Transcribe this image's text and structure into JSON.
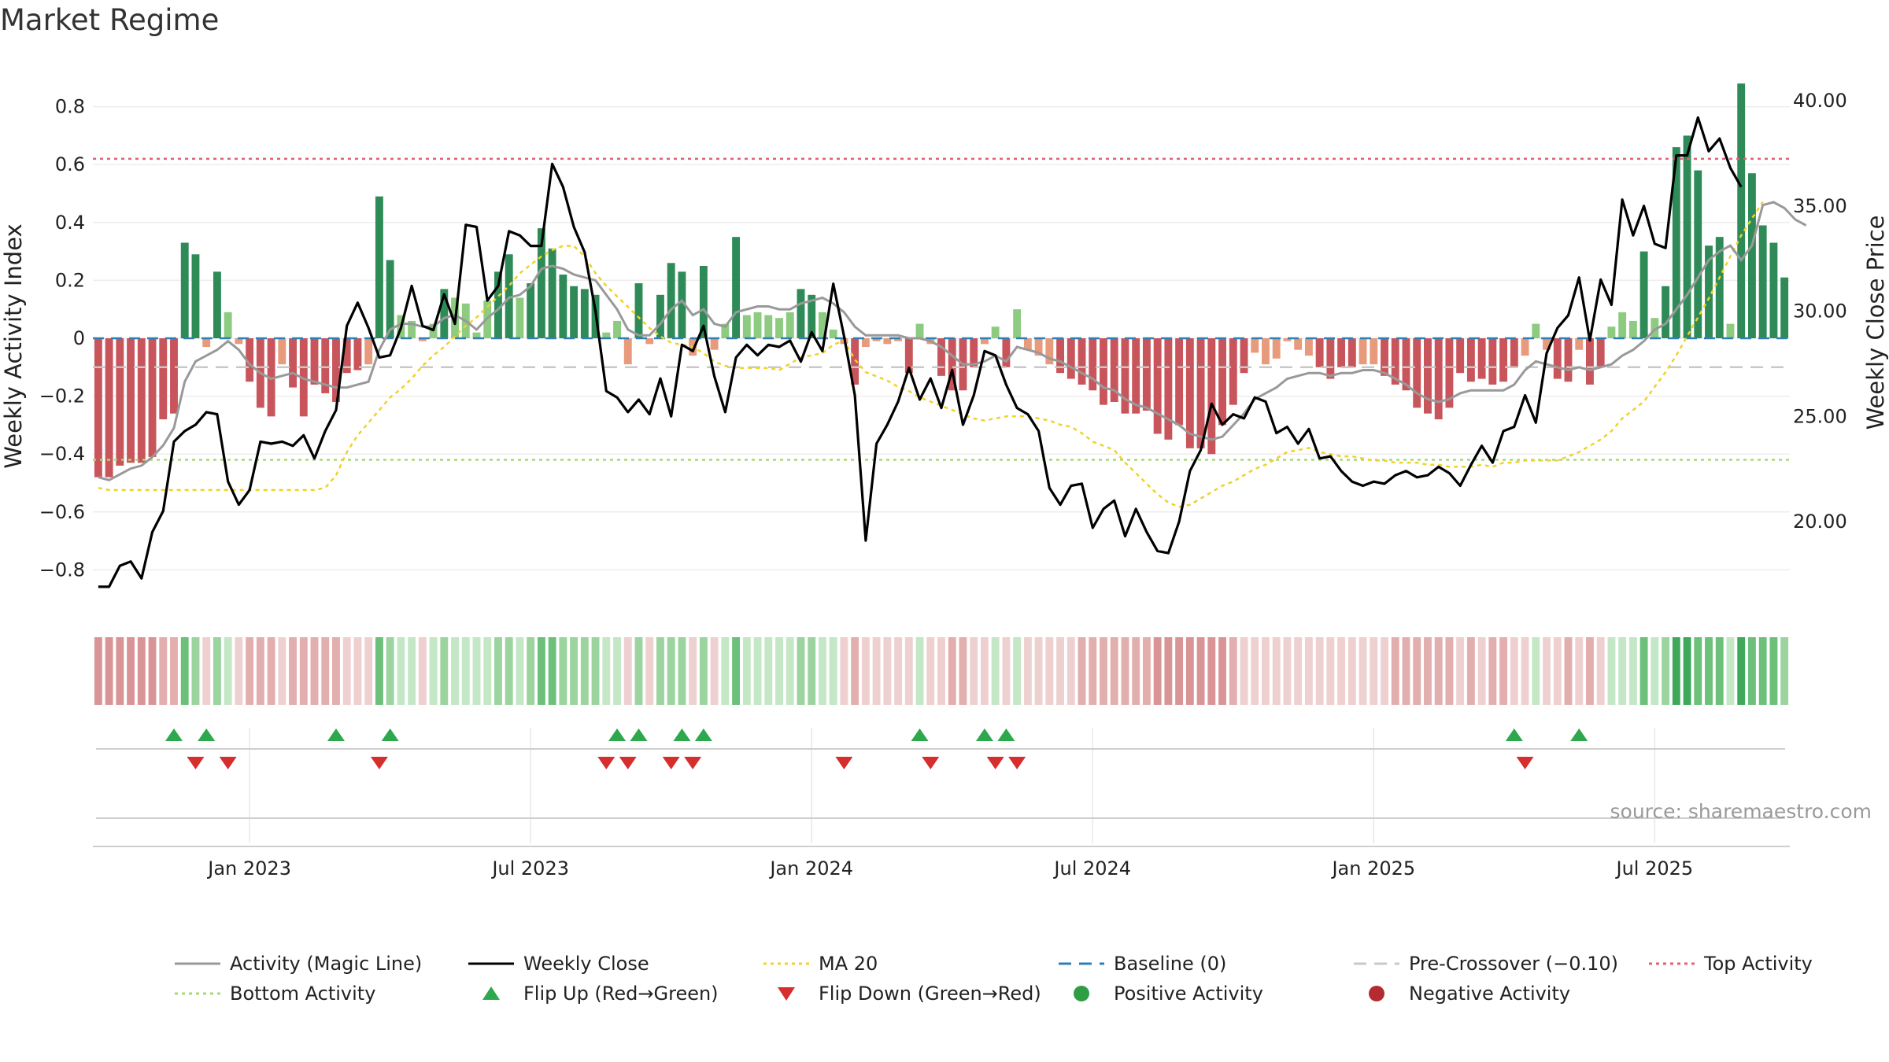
{
  "chart_data": {
    "type": "bar",
    "title": "Market Regime",
    "ylabel": "Weekly Activity Index",
    "y2label": "Weekly Close Price",
    "ylim": [
      -0.96,
      0.96
    ],
    "y2lim": [
      15.4,
      42.2
    ],
    "y_ticks": [
      -0.8,
      -0.6,
      -0.4,
      -0.2,
      0,
      0.2,
      0.4,
      0.6,
      0.8
    ],
    "y_tick_labels": [
      "−0.8",
      "−0.6",
      "−0.4",
      "−0.2",
      "0",
      "0.2",
      "0.4",
      "0.6",
      "0.8"
    ],
    "y2_ticks": [
      20,
      25,
      30,
      35,
      40
    ],
    "y2_tick_labels": [
      "20.00",
      "25.00",
      "30.00",
      "35.00",
      "40.00"
    ],
    "x_ticks": [
      "Jan 2023",
      "Jul 2023",
      "Jan 2024",
      "Jul 2024",
      "Jan 2025",
      "Jul 2025"
    ],
    "x_tick_weeks": [
      14,
      40,
      66,
      92,
      118,
      144
    ],
    "weeks": 157,
    "activity": [
      -0.48,
      -0.48,
      -0.44,
      -0.43,
      -0.43,
      -0.41,
      -0.28,
      -0.26,
      0.33,
      0.29,
      -0.03,
      0.23,
      0.09,
      -0.02,
      -0.15,
      -0.24,
      -0.27,
      -0.09,
      -0.17,
      -0.27,
      -0.16,
      -0.19,
      -0.22,
      -0.12,
      -0.11,
      -0.09,
      0.49,
      0.27,
      0.08,
      0.06,
      -0.01,
      0.05,
      0.17,
      0.14,
      0.12,
      0.02,
      0.13,
      0.23,
      0.29,
      0.14,
      0.19,
      0.38,
      0.31,
      0.22,
      0.18,
      0.17,
      0.15,
      0.02,
      0.06,
      -0.09,
      0.19,
      -0.02,
      0.15,
      0.26,
      0.23,
      -0.06,
      0.25,
      -0.04,
      0.05,
      0.35,
      0.08,
      0.09,
      0.08,
      0.07,
      0.09,
      0.17,
      0.15,
      0.09,
      0.03,
      -0.02,
      -0.16,
      -0.03,
      -0.01,
      -0.02,
      -0.01,
      -0.12,
      0.05,
      -0.02,
      -0.13,
      -0.18,
      -0.18,
      -0.1,
      -0.02,
      0.04,
      -0.1,
      0.1,
      -0.04,
      -0.06,
      -0.09,
      -0.12,
      -0.14,
      -0.16,
      -0.18,
      -0.23,
      -0.22,
      -0.26,
      -0.26,
      -0.25,
      -0.33,
      -0.35,
      -0.3,
      -0.38,
      -0.38,
      -0.4,
      -0.3,
      -0.23,
      -0.12,
      -0.05,
      -0.09,
      -0.07,
      -0.01,
      -0.04,
      -0.06,
      -0.1,
      -0.14,
      -0.1,
      -0.1,
      -0.09,
      -0.09,
      -0.13,
      -0.16,
      -0.18,
      -0.24,
      -0.26,
      -0.28,
      -0.24,
      -0.12,
      -0.15,
      -0.14,
      -0.16,
      -0.15,
      -0.1,
      -0.06,
      0.05,
      -0.04,
      -0.14,
      -0.15,
      -0.04,
      -0.16,
      -0.1,
      0.04,
      0.09,
      0.06,
      0.3,
      0.07,
      0.18,
      0.66,
      0.7,
      0.58,
      0.32,
      0.35,
      0.05,
      0.88,
      0.57,
      0.39,
      0.33,
      0.21
    ],
    "weekly_close": [
      16.9,
      16.9,
      17.9,
      18.1,
      17.3,
      19.5,
      20.5,
      23.8,
      24.3,
      24.6,
      25.2,
      25.1,
      21.9,
      20.8,
      21.5,
      23.8,
      23.7,
      23.8,
      23.6,
      24.1,
      23.0,
      24.3,
      25.3,
      29.3,
      30.4,
      29.2,
      27.8,
      27.9,
      29.2,
      31.2,
      29.3,
      29.1,
      30.8,
      29.4,
      34.1,
      34.0,
      30.5,
      31.2,
      33.8,
      33.6,
      33.1,
      33.1,
      37.0,
      35.9,
      34.0,
      32.8,
      30.0,
      26.2,
      25.9,
      25.2,
      25.8,
      25.1,
      26.8,
      25.0,
      28.4,
      28.1,
      29.3,
      26.9,
      25.2,
      27.8,
      28.4,
      27.9,
      28.4,
      28.3,
      28.6,
      27.6,
      29.0,
      28.1,
      31.3,
      28.8,
      26.0,
      19.1,
      23.7,
      24.6,
      25.7,
      27.3,
      25.8,
      26.8,
      25.4,
      27.2,
      24.6,
      26.0,
      28.1,
      27.9,
      26.5,
      25.4,
      25.1,
      24.3,
      21.6,
      20.8,
      21.7,
      21.8,
      19.7,
      20.6,
      21.0,
      19.3,
      20.6,
      19.5,
      18.6,
      18.5,
      20.0,
      22.4,
      23.4,
      25.6,
      24.6,
      25.1,
      24.9,
      25.9,
      25.7,
      24.2,
      24.5,
      23.7,
      24.4,
      23.0,
      23.1,
      22.4,
      21.9,
      21.7,
      21.9,
      21.8,
      22.2,
      22.4,
      22.1,
      22.2,
      22.6,
      22.3,
      21.7,
      22.7,
      23.6,
      22.8,
      24.3,
      24.5,
      26.0,
      24.7,
      28.0,
      29.2,
      29.8,
      31.6,
      28.6,
      31.5,
      30.3,
      35.3,
      33.6,
      35.0,
      33.2,
      33.0,
      37.4,
      37.4,
      39.2,
      37.6,
      38.2,
      36.8,
      35.9
    ],
    "magic_line": [
      -0.48,
      -0.49,
      -0.47,
      -0.45,
      -0.44,
      -0.41,
      -0.37,
      -0.31,
      -0.15,
      -0.08,
      -0.06,
      -0.04,
      -0.01,
      -0.04,
      -0.09,
      -0.12,
      -0.14,
      -0.13,
      -0.12,
      -0.14,
      -0.15,
      -0.16,
      -0.17,
      -0.17,
      -0.16,
      -0.15,
      -0.04,
      0.03,
      0.05,
      0.05,
      0.04,
      0.04,
      0.07,
      0.08,
      0.06,
      0.03,
      0.07,
      0.1,
      0.14,
      0.15,
      0.18,
      0.24,
      0.25,
      0.24,
      0.22,
      0.21,
      0.2,
      0.15,
      0.1,
      0.03,
      0.01,
      0.01,
      0.05,
      0.1,
      0.13,
      0.08,
      0.1,
      0.05,
      0.04,
      0.09,
      0.1,
      0.11,
      0.11,
      0.1,
      0.1,
      0.12,
      0.13,
      0.14,
      0.12,
      0.09,
      0.04,
      0.01,
      0.01,
      0.01,
      0.01,
      0.0,
      0.0,
      -0.01,
      -0.03,
      -0.06,
      -0.09,
      -0.09,
      -0.08,
      -0.06,
      -0.08,
      -0.03,
      -0.04,
      -0.05,
      -0.07,
      -0.08,
      -0.1,
      -0.12,
      -0.14,
      -0.17,
      -0.18,
      -0.21,
      -0.23,
      -0.24,
      -0.26,
      -0.28,
      -0.3,
      -0.33,
      -0.34,
      -0.35,
      -0.34,
      -0.3,
      -0.26,
      -0.21,
      -0.19,
      -0.17,
      -0.14,
      -0.13,
      -0.12,
      -0.12,
      -0.13,
      -0.12,
      -0.12,
      -0.11,
      -0.11,
      -0.12,
      -0.14,
      -0.16,
      -0.19,
      -0.21,
      -0.22,
      -0.21,
      -0.19,
      -0.18,
      -0.18,
      -0.18,
      -0.18,
      -0.16,
      -0.11,
      -0.08,
      -0.09,
      -0.1,
      -0.11,
      -0.1,
      -0.11,
      -0.1,
      -0.09,
      -0.06,
      -0.04,
      -0.01,
      0.03,
      0.05,
      0.1,
      0.15,
      0.21,
      0.27,
      0.3,
      0.32,
      0.27,
      0.32,
      0.46,
      0.47,
      0.45,
      0.41,
      0.39
    ],
    "ma20": [
      21.6,
      21.5,
      21.5,
      21.5,
      21.5,
      21.5,
      21.5,
      21.5,
      21.5,
      21.5,
      21.5,
      21.5,
      21.5,
      21.5,
      21.5,
      21.5,
      21.5,
      21.5,
      21.5,
      21.5,
      21.5,
      21.6,
      22.2,
      23.3,
      24.1,
      24.7,
      25.3,
      25.9,
      26.3,
      26.8,
      27.4,
      27.9,
      28.3,
      28.8,
      29.3,
      29.7,
      30.2,
      30.7,
      31.2,
      31.8,
      32.2,
      32.6,
      32.9,
      33.1,
      33.1,
      32.6,
      31.8,
      31.2,
      30.7,
      30.2,
      29.7,
      29.2,
      28.8,
      28.5,
      28.4,
      28.3,
      28.0,
      27.6,
      27.4,
      27.3,
      27.3,
      27.3,
      27.3,
      27.2,
      27.5,
      27.8,
      27.9,
      28.0,
      28.4,
      28.6,
      27.7,
      27.1,
      26.9,
      26.7,
      26.4,
      26.2,
      25.9,
      25.7,
      25.5,
      25.3,
      25.1,
      24.9,
      24.8,
      24.9,
      25.0,
      25.0,
      25.0,
      24.9,
      24.8,
      24.6,
      24.5,
      24.2,
      23.8,
      23.6,
      23.4,
      22.8,
      22.3,
      21.8,
      21.3,
      20.9,
      20.7,
      20.8,
      21.1,
      21.4,
      21.7,
      21.9,
      22.2,
      22.5,
      22.7,
      23.0,
      23.3,
      23.4,
      23.5,
      23.3,
      23.2,
      23.1,
      23.1,
      23.0,
      22.9,
      22.9,
      22.8,
      22.8,
      22.8,
      22.7,
      22.7,
      22.6,
      22.6,
      22.6,
      22.7,
      22.6,
      22.8,
      22.8,
      22.9,
      22.9,
      22.9,
      22.9,
      23.1,
      23.3,
      23.6,
      23.9,
      24.3,
      24.9,
      25.3,
      25.7,
      26.4,
      27.1,
      27.9,
      28.8,
      29.7,
      30.6,
      31.6,
      32.6,
      33.6,
      34.4,
      35.2
    ],
    "baseline": 0,
    "pre_crossover": -0.1,
    "top_activity": 0.62,
    "bottom_activity": -0.42,
    "flip_up_weeks": [
      7,
      10,
      22,
      27,
      48,
      50,
      54,
      56,
      76,
      82,
      84,
      131,
      137
    ],
    "flip_down_weeks": [
      9,
      12,
      26,
      47,
      49,
      53,
      55,
      69,
      77,
      83,
      85,
      132
    ],
    "legend": [
      {
        "label": "Activity (Magic Line)",
        "style": "solid",
        "color": "#999999"
      },
      {
        "label": "Weekly Close",
        "style": "solid",
        "color": "#000000"
      },
      {
        "label": "MA 20",
        "style": "dotted",
        "color": "#f0d22a"
      },
      {
        "label": "Baseline (0)",
        "style": "dashed",
        "color": "#2f7fb5"
      },
      {
        "label": "Pre-Crossover (−0.10)",
        "style": "dashed",
        "color": "#c8c8c8"
      },
      {
        "label": "Top Activity",
        "style": "dotted",
        "color": "#e0607a"
      },
      {
        "label": "Bottom Activity",
        "style": "dotted",
        "color": "#a8d878"
      },
      {
        "label": "Flip Up (Red→Green)",
        "style": "triangle-up",
        "color": "#2ea84d"
      },
      {
        "label": "Flip Down (Green→Red)",
        "style": "triangle-down",
        "color": "#d62d2d"
      },
      {
        "label": "Positive Activity",
        "style": "dot",
        "color": "#2e9e45"
      },
      {
        "label": "Negative Activity",
        "style": "dot",
        "color": "#b52b32"
      }
    ],
    "colors": {
      "pos_strong": "#2e8b57",
      "pos_light": "#8ccb80",
      "neg_strong": "#c8555b",
      "neg_light": "#e89a7c",
      "close": "#000000",
      "magic": "#999999",
      "ma20": "#f0d22a"
    },
    "grid": true
  },
  "source": "source: sharemaestro.com"
}
